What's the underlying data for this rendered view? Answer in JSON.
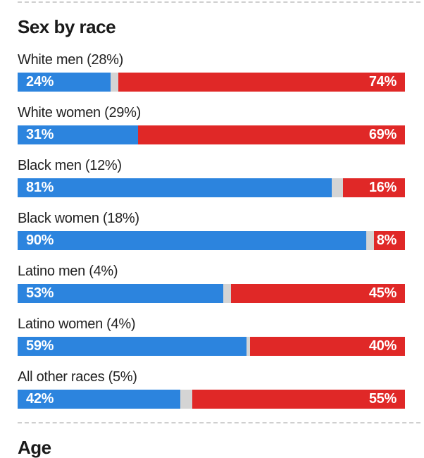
{
  "page": {
    "section_title": "Sex by race",
    "next_section_title": "Age"
  },
  "colors": {
    "dem_blue": "#2c84de",
    "rep_red": "#e02827",
    "gap_gray": "#d4d4d4",
    "divider_gray": "#cfcfcf",
    "heading_color": "#1a1a1a",
    "label_color": "#222222",
    "bar_value_text": "#ffffff"
  },
  "chart_data": {
    "type": "bar",
    "subtype": "horizontal_stacked_100_percent",
    "title": "Sex by race",
    "unit": "%",
    "xlim": [
      0,
      100
    ],
    "grid": false,
    "legend": "none",
    "bar_labels": "inside",
    "categories": [
      "White men (28%)",
      "White women (29%)",
      "Black men (12%)",
      "Black women (18%)",
      "Latino men (4%)",
      "Latino women (4%)",
      "All other races (5%)"
    ],
    "series": [
      {
        "name": "blue-left",
        "color": "#2c84de",
        "values": [
          24,
          31,
          81,
          90,
          53,
          59,
          42
        ]
      },
      {
        "name": "red-right",
        "color": "#e02827",
        "values": [
          74,
          69,
          16,
          8,
          45,
          40,
          55
        ]
      }
    ],
    "rows": [
      {
        "label": "White men (28%)",
        "blue": 24,
        "red": 74,
        "blue_label": "24%",
        "red_label": "74%"
      },
      {
        "label": "White women (29%)",
        "blue": 31,
        "red": 69,
        "blue_label": "31%",
        "red_label": "69%"
      },
      {
        "label": "Black men (12%)",
        "blue": 81,
        "red": 16,
        "blue_label": "81%",
        "red_label": "16%"
      },
      {
        "label": "Black women (18%)",
        "blue": 90,
        "red": 8,
        "blue_label": "90%",
        "red_label": "8%"
      },
      {
        "label": "Latino men (4%)",
        "blue": 53,
        "red": 45,
        "blue_label": "53%",
        "red_label": "45%"
      },
      {
        "label": "Latino women (4%)",
        "blue": 59,
        "red": 40,
        "blue_label": "59%",
        "red_label": "40%"
      },
      {
        "label": "All other races (5%)",
        "blue": 42,
        "red": 55,
        "blue_label": "42%",
        "red_label": "55%"
      }
    ]
  }
}
